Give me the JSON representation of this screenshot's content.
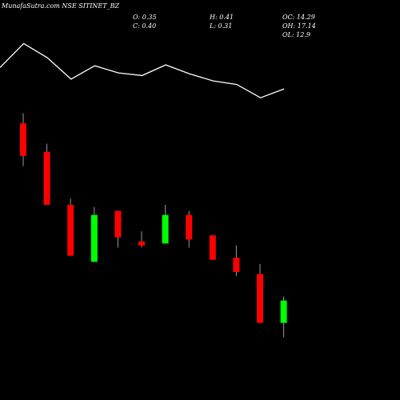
{
  "chart_data": {
    "type": "candlestick",
    "title": "MunafaSutra.com NSE SITINET_BZ",
    "stats": {
      "open": "O: 0.35",
      "close": "C: 0.40",
      "high": "H: 0.41",
      "low": "L: 0.31",
      "oc": "OC: 14.29",
      "oh": "OH: 17.14",
      "ol": "OL: 12.9"
    },
    "colors": {
      "up": "#00ff00",
      "down": "#ff0000",
      "wick": "#999999",
      "line": "#ffffff",
      "background": "#000000"
    },
    "ylim": [
      0.3,
      1.95
    ],
    "candles": [
      {
        "open": 1.58,
        "close": 1.42,
        "high": 1.63,
        "low": 1.37
      },
      {
        "open": 1.44,
        "close": 1.18,
        "high": 1.48,
        "low": 1.18
      },
      {
        "open": 1.18,
        "close": 0.93,
        "high": 1.21,
        "low": 0.93
      },
      {
        "open": 0.9,
        "close": 1.13,
        "high": 1.17,
        "low": 0.9
      },
      {
        "open": 1.15,
        "close": 1.02,
        "high": 1.15,
        "low": 0.97
      },
      {
        "open": 1.0,
        "close": 0.98,
        "high": 1.05,
        "low": 0.97
      },
      {
        "open": 0.99,
        "close": 1.13,
        "high": 1.18,
        "low": 0.99
      },
      {
        "open": 1.13,
        "close": 1.01,
        "high": 1.15,
        "low": 0.97
      },
      {
        "open": 1.03,
        "close": 0.91,
        "high": 1.03,
        "low": 0.91
      },
      {
        "open": 0.92,
        "close": 0.85,
        "high": 0.98,
        "low": 0.83
      },
      {
        "open": 0.84,
        "close": 0.6,
        "high": 0.89,
        "low": 0.6
      },
      {
        "open": 0.6,
        "close": 0.71,
        "high": 0.73,
        "low": 0.53
      }
    ],
    "line_values": [
      12.2,
      14.9,
      13.3,
      10.9,
      12.4,
      11.6,
      11.3,
      12.5,
      11.5,
      10.7,
      10.3,
      8.8,
      9.8
    ],
    "line_ylim": [
      0,
      18
    ]
  }
}
